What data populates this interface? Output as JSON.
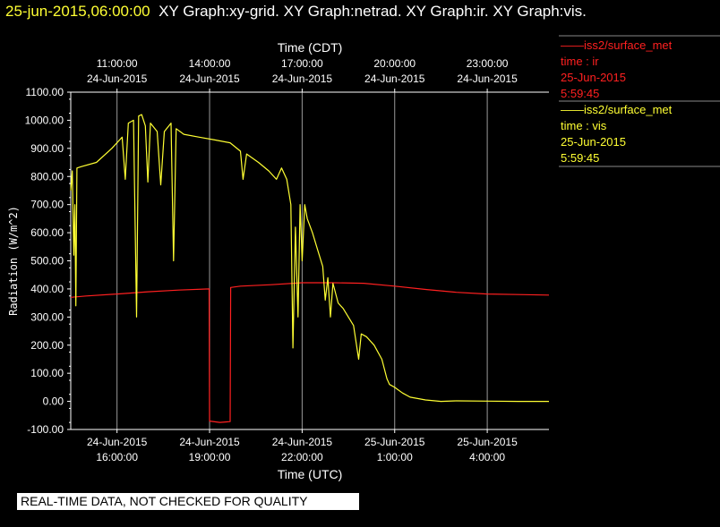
{
  "header": {
    "timestamp": "25-jun-2015,06:00:00",
    "graphs": "XY Graph:xy-grid.  XY Graph:netrad.  XY Graph:ir.  XY Graph:vis."
  },
  "legend": {
    "ir": {
      "source": "——iss2/surface_met",
      "label": "time : ir",
      "date": "25-Jun-2015",
      "time": "5:59:45"
    },
    "vis": {
      "source": "——iss2/surface_met",
      "label": "time : vis",
      "date": "25-Jun-2015",
      "time": "5:59:45"
    }
  },
  "notice": "REAL-TIME DATA, NOT CHECKED FOR QUALITY",
  "colors": {
    "ir": "#ff2020",
    "vis": "#ffff33",
    "background": "#000000",
    "axes": "#ffffff"
  },
  "chart_data": {
    "type": "line",
    "ylabel": "Radiation (W/m^2)",
    "xlabel_bottom": "Time (UTC)",
    "xlabel_top": "Time (CDT)",
    "ylim": [
      -100,
      1100
    ],
    "xlim_utc": [
      "2015-06-24 14:30",
      "2015-06-25 06:00"
    ],
    "yticks": [
      "1100.00",
      "1000.00",
      "900.00",
      "800.00",
      "700.00",
      "600.00",
      "500.00",
      "400.00",
      "300.00",
      "200.00",
      "100.00",
      "0.00",
      "-100.00"
    ],
    "xticks_bottom": [
      {
        "date": "24-Jun-2015",
        "time": "16:00:00"
      },
      {
        "date": "24-Jun-2015",
        "time": "19:00:00"
      },
      {
        "date": "24-Jun-2015",
        "time": "22:00:00"
      },
      {
        "date": "25-Jun-2015",
        "time": "1:00:00"
      },
      {
        "date": "25-Jun-2015",
        "time": "4:00:00"
      }
    ],
    "xticks_top": [
      {
        "time": "11:00:00",
        "date": "24-Jun-2015"
      },
      {
        "time": "14:00:00",
        "date": "24-Jun-2015"
      },
      {
        "time": "17:00:00",
        "date": "24-Jun-2015"
      },
      {
        "time": "20:00:00",
        "date": "24-Jun-2015"
      },
      {
        "time": "23:00:00",
        "date": "24-Jun-2015"
      }
    ],
    "grid": "vertical",
    "series": [
      {
        "name": "time : ir",
        "points": [
          [
            "2015-06-24 14:30",
            370
          ],
          [
            "2015-06-24 15:00",
            375
          ],
          [
            "2015-06-24 16:00",
            382
          ],
          [
            "2015-06-24 17:00",
            390
          ],
          [
            "2015-06-24 18:00",
            396
          ],
          [
            "2015-06-24 18:59",
            400
          ],
          [
            "2015-06-24 19:00",
            -70
          ],
          [
            "2015-06-24 19:20",
            -75
          ],
          [
            "2015-06-24 19:40",
            -72
          ],
          [
            "2015-06-24 19:41",
            405
          ],
          [
            "2015-06-24 20:00",
            410
          ],
          [
            "2015-06-24 21:00",
            415
          ],
          [
            "2015-06-24 22:00",
            422
          ],
          [
            "2015-06-24 23:00",
            422
          ],
          [
            "2015-06-25 00:00",
            420
          ],
          [
            "2015-06-25 01:00",
            410
          ],
          [
            "2015-06-25 02:00",
            398
          ],
          [
            "2015-06-25 03:00",
            388
          ],
          [
            "2015-06-25 04:00",
            382
          ],
          [
            "2015-06-25 05:00",
            380
          ],
          [
            "2015-06-25 06:00",
            378
          ]
        ]
      },
      {
        "name": "time : vis",
        "points": [
          [
            "2015-06-24 14:30",
            750
          ],
          [
            "2015-06-24 14:33",
            820
          ],
          [
            "2015-06-24 14:36",
            520
          ],
          [
            "2015-06-24 14:38",
            700
          ],
          [
            "2015-06-24 14:40",
            340
          ],
          [
            "2015-06-24 14:42",
            830
          ],
          [
            "2015-06-24 14:50",
            835
          ],
          [
            "2015-06-24 15:20",
            850
          ],
          [
            "2015-06-24 15:50",
            900
          ],
          [
            "2015-06-24 16:10",
            940
          ],
          [
            "2015-06-24 16:16",
            790
          ],
          [
            "2015-06-24 16:22",
            990
          ],
          [
            "2015-06-24 16:32",
            1000
          ],
          [
            "2015-06-24 16:38",
            300
          ],
          [
            "2015-06-24 16:42",
            1015
          ],
          [
            "2015-06-24 16:48",
            1020
          ],
          [
            "2015-06-24 16:55",
            980
          ],
          [
            "2015-06-24 17:00",
            780
          ],
          [
            "2015-06-24 17:05",
            990
          ],
          [
            "2015-06-24 17:18",
            960
          ],
          [
            "2015-06-24 17:25",
            770
          ],
          [
            "2015-06-24 17:32",
            960
          ],
          [
            "2015-06-24 17:45",
            990
          ],
          [
            "2015-06-24 17:50",
            500
          ],
          [
            "2015-06-24 17:55",
            970
          ],
          [
            "2015-06-24 18:10",
            950
          ],
          [
            "2015-06-24 18:40",
            940
          ],
          [
            "2015-06-24 19:10",
            930
          ],
          [
            "2015-06-24 19:40",
            920
          ],
          [
            "2015-06-24 20:00",
            890
          ],
          [
            "2015-06-24 20:05",
            790
          ],
          [
            "2015-06-24 20:12",
            880
          ],
          [
            "2015-06-24 20:35",
            850
          ],
          [
            "2015-06-24 20:55",
            820
          ],
          [
            "2015-06-24 21:10",
            790
          ],
          [
            "2015-06-24 21:20",
            830
          ],
          [
            "2015-06-24 21:30",
            790
          ],
          [
            "2015-06-24 21:38",
            700
          ],
          [
            "2015-06-24 21:42",
            190
          ],
          [
            "2015-06-24 21:47",
            620
          ],
          [
            "2015-06-24 21:52",
            300
          ],
          [
            "2015-06-24 21:56",
            700
          ],
          [
            "2015-06-24 22:00",
            500
          ],
          [
            "2015-06-24 22:05",
            700
          ],
          [
            "2015-06-24 22:10",
            650
          ],
          [
            "2015-06-24 22:20",
            600
          ],
          [
            "2015-06-24 22:30",
            540
          ],
          [
            "2015-06-24 22:40",
            480
          ],
          [
            "2015-06-24 22:45",
            360
          ],
          [
            "2015-06-24 22:50",
            440
          ],
          [
            "2015-06-24 22:55",
            300
          ],
          [
            "2015-06-24 23:00",
            420
          ],
          [
            "2015-06-24 23:10",
            350
          ],
          [
            "2015-06-24 23:20",
            330
          ],
          [
            "2015-06-24 23:40",
            270
          ],
          [
            "2015-06-24 23:50",
            150
          ],
          [
            "2015-06-24 23:55",
            240
          ],
          [
            "2015-06-25 00:05",
            230
          ],
          [
            "2015-06-25 00:20",
            200
          ],
          [
            "2015-06-25 00:35",
            150
          ],
          [
            "2015-06-25 00:45",
            80
          ],
          [
            "2015-06-25 00:50",
            60
          ],
          [
            "2015-06-25 01:00",
            50
          ],
          [
            "2015-06-25 01:15",
            30
          ],
          [
            "2015-06-25 01:30",
            15
          ],
          [
            "2015-06-25 02:00",
            5
          ],
          [
            "2015-06-25 02:30",
            0
          ],
          [
            "2015-06-25 03:00",
            2
          ],
          [
            "2015-06-25 04:00",
            1
          ],
          [
            "2015-06-25 05:00",
            0
          ],
          [
            "2015-06-25 06:00",
            0
          ]
        ]
      }
    ]
  }
}
